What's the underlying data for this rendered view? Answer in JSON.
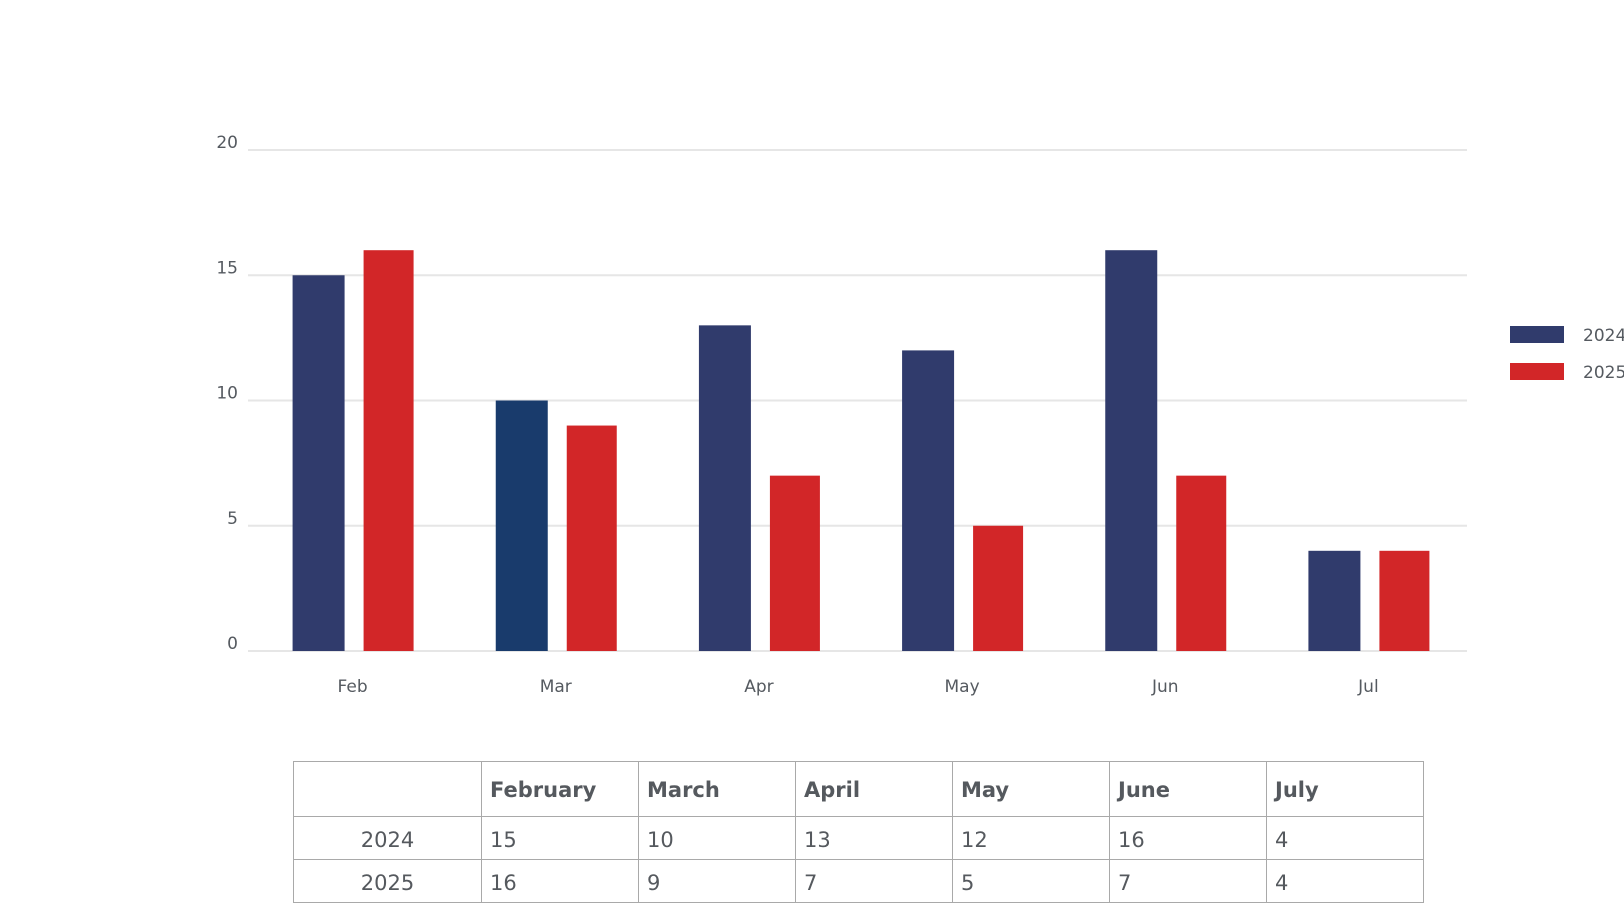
{
  "chart_data": {
    "type": "bar",
    "title": "",
    "xlabel": "",
    "ylabel": "",
    "categories": [
      "Feb",
      "Mar",
      "Apr",
      "May",
      "Jun",
      "Jul"
    ],
    "series": [
      {
        "name": "2024",
        "values": [
          15,
          10,
          13,
          12,
          16,
          4
        ],
        "color": "#303b6c",
        "alt_color_mar": "#193b6c"
      },
      {
        "name": "2025",
        "values": [
          16,
          9,
          7,
          5,
          7,
          4
        ],
        "color": "#d22628"
      }
    ],
    "ylim": [
      0,
      20
    ],
    "yticks": [
      0,
      5,
      10,
      15,
      20
    ],
    "grid": true,
    "legend_position": "right",
    "grid_color": "#e6e6e6"
  },
  "table": {
    "columns": [
      "",
      "February",
      "March",
      "April",
      "May",
      "June",
      "July"
    ],
    "rows": [
      {
        "label": "2024",
        "values": [
          "15",
          "10",
          "13",
          "12",
          "16",
          "4"
        ]
      },
      {
        "label": "2025",
        "values": [
          "16",
          "9",
          "7",
          "5",
          "7",
          "4"
        ]
      }
    ]
  }
}
